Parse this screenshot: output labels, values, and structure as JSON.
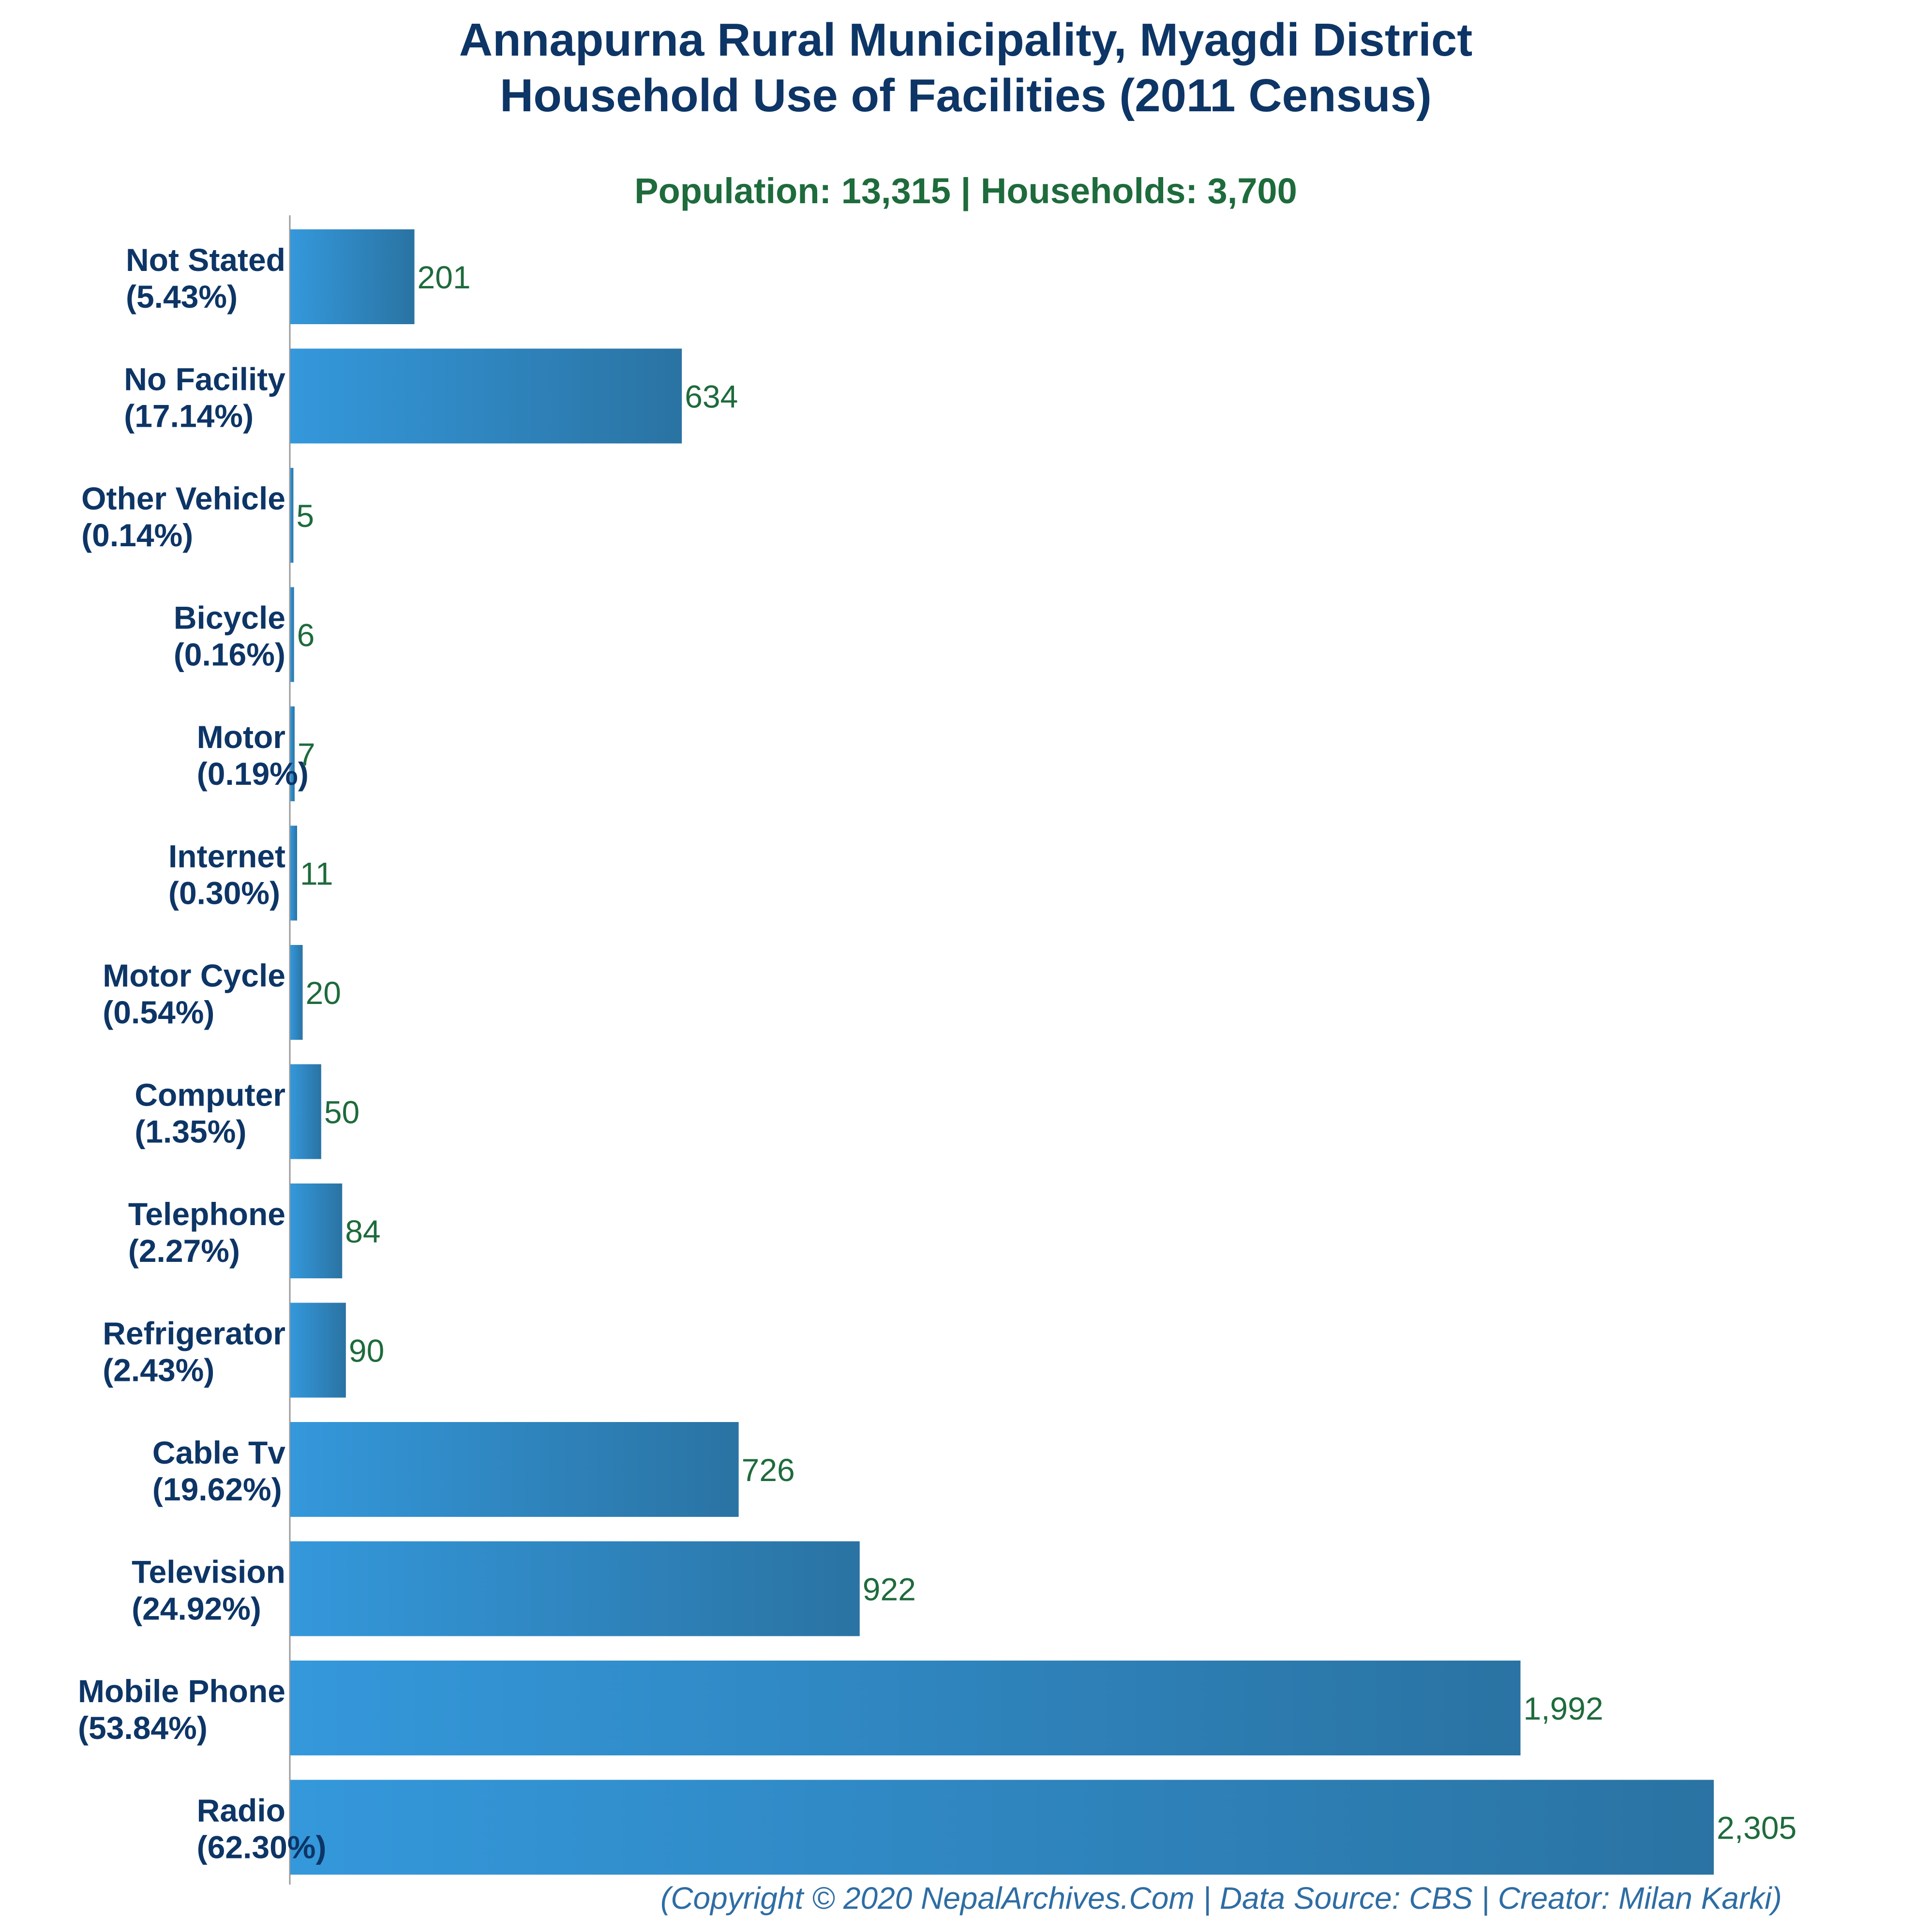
{
  "chart_data": {
    "type": "bar",
    "orientation": "horizontal",
    "title": "Annapurna Rural Municipality, Myagdi District",
    "title_line2": "Household Use of Facilities (2011 Census)",
    "subtitle": "Population: 13,315 | Households: 3,700",
    "footer": "(Copyright © 2020 NepalArchives.Com | Data Source: CBS | Creator: Milan Karki)",
    "categories": [
      "Not Stated",
      "No Facility",
      "Other Vehicle",
      "Bicycle",
      "Motor",
      "Internet",
      "Motor Cycle",
      "Computer",
      "Telephone",
      "Refrigerator",
      "Cable Tv",
      "Television",
      "Mobile Phone",
      "Radio"
    ],
    "percent_labels": [
      "(5.43%)",
      "(17.14%)",
      "(0.14%)",
      "(0.16%)",
      "(0.19%)",
      "(0.30%)",
      "(0.54%)",
      "(1.35%)",
      "(2.27%)",
      "(2.43%)",
      "(19.62%)",
      "(24.92%)",
      "(53.84%)",
      "(62.30%)"
    ],
    "values": [
      201,
      634,
      5,
      6,
      7,
      11,
      20,
      50,
      84,
      90,
      726,
      922,
      1992,
      2305
    ],
    "value_labels": [
      "201",
      "634",
      "5",
      "6",
      "7",
      "11",
      "20",
      "50",
      "84",
      "90",
      "726",
      "922",
      "1,992",
      "2,305"
    ],
    "grid": false,
    "legend": "none",
    "colors": {
      "title": "#0d3566",
      "subtitle": "#1e6b3c",
      "category_label": "#0d3566",
      "value_label": "#1e6b3c",
      "bar_start": "#3498db",
      "bar_end": "#2a73a3",
      "footer": "#2e6da4",
      "axis": "#9a9a9a"
    }
  }
}
